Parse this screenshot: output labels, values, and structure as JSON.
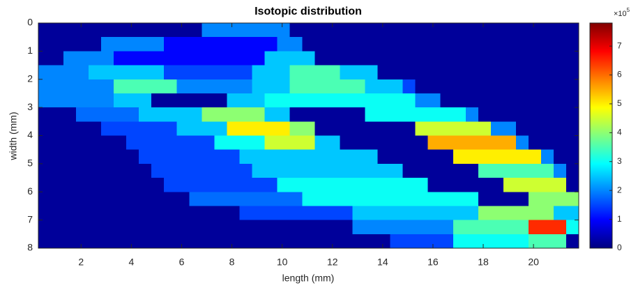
{
  "chart_data": {
    "type": "heatmap",
    "title": "Isotopic distribution",
    "xlabel": "length (mm)",
    "ylabel": "width (mm)",
    "colormap": "jet",
    "y_reversed": true,
    "xlim": [
      0.3,
      21.8
    ],
    "xticks": [
      2,
      4,
      6,
      8,
      10,
      12,
      14,
      16,
      18,
      20
    ],
    "ylim": [
      0,
      8
    ],
    "yticks": [
      0,
      1,
      2,
      3,
      4,
      5,
      6,
      7,
      8
    ],
    "clim": [
      0,
      7.8
    ],
    "cticks": [
      0,
      1,
      2,
      3,
      4,
      5,
      6,
      7
    ],
    "colorbar_multiplier": "×10",
    "colorbar_exponent": "5",
    "x": [
      0.55,
      1.05,
      1.55,
      2.05,
      2.55,
      3.05,
      3.55,
      4.05,
      4.55,
      5.05,
      5.55,
      6.05,
      6.55,
      7.05,
      7.55,
      8.05,
      8.55,
      9.05,
      9.55,
      10.05,
      10.55,
      11.05,
      11.55,
      12.05,
      12.55,
      13.05,
      13.55,
      14.05,
      14.55,
      15.05,
      15.55,
      16.05,
      16.55,
      17.05,
      17.55,
      18.05,
      18.55,
      19.05,
      19.55,
      20.05,
      20.55,
      21.05,
      21.55
    ],
    "y": [
      0.25,
      0.75,
      1.25,
      1.75,
      2.25,
      2.75,
      3.25,
      3.75,
      4.25,
      4.75,
      5.25,
      5.75,
      6.25,
      6.75,
      7.25,
      7.75
    ],
    "z": [
      [
        0.2,
        0.2,
        0.2,
        0.2,
        0.2,
        0.2,
        0.2,
        0.2,
        0.2,
        0.2,
        0.2,
        0.2,
        0.2,
        2,
        2,
        2,
        2,
        2,
        2,
        2,
        0.2,
        0.2,
        0.2,
        0.2,
        0.2,
        0.2,
        0.2,
        0.2,
        0.2,
        0.2,
        0.2,
        0.2,
        0.2,
        0.2,
        0.2,
        0.2,
        0.2,
        0.2,
        0.2,
        0.2,
        0.2,
        0.2,
        0.2
      ],
      [
        0.2,
        0.2,
        0.2,
        0.2,
        0.2,
        2,
        2,
        2,
        2,
        2,
        1,
        1,
        1,
        1,
        1,
        1,
        1,
        1,
        1,
        2,
        2,
        0.2,
        0.2,
        0.2,
        0.2,
        0.2,
        0.2,
        0.2,
        0.2,
        0.2,
        0.2,
        0.2,
        0.2,
        0.2,
        0.2,
        0.2,
        0.2,
        0.2,
        0.2,
        0.2,
        0.2,
        0.2,
        0.2
      ],
      [
        0.2,
        0.2,
        2,
        2,
        2,
        2,
        1,
        1,
        1,
        1,
        1,
        1,
        1,
        1,
        1,
        1,
        1,
        1,
        2.5,
        2.5,
        2.5,
        2.5,
        0.2,
        0.2,
        0.2,
        0.2,
        0.2,
        0.2,
        0.2,
        0.2,
        0.2,
        0.2,
        0.2,
        0.2,
        0.2,
        0.2,
        0.2,
        0.2,
        0.2,
        0.2,
        0.2,
        0.2,
        0.2
      ],
      [
        2,
        2,
        2,
        2,
        2.5,
        2.5,
        2.5,
        2.5,
        2.5,
        2.5,
        1.5,
        1.5,
        1.5,
        1.5,
        1.5,
        1.5,
        1.5,
        2.5,
        2.5,
        2.5,
        3.5,
        3.5,
        3.5,
        3.5,
        2.5,
        2.5,
        2.5,
        0.2,
        0.2,
        0.2,
        0.2,
        0.2,
        0.2,
        0.2,
        0.2,
        0.2,
        0.2,
        0.2,
        0.2,
        0.2,
        0.2,
        0.2,
        0.2
      ],
      [
        2,
        2,
        2,
        2,
        2,
        2,
        3.5,
        3.5,
        3.5,
        3.5,
        3.5,
        2,
        2,
        2,
        2,
        2,
        2,
        2.5,
        2.5,
        2.5,
        3.5,
        3.5,
        3.5,
        3.5,
        3.5,
        3.5,
        2.5,
        2.5,
        2.5,
        1.5,
        0.2,
        0.2,
        0.2,
        0.2,
        0.2,
        0.2,
        0.2,
        0.2,
        0.2,
        0.2,
        0.2,
        0.2,
        0.2
      ],
      [
        2,
        2,
        2,
        2,
        2,
        2,
        2.5,
        2.5,
        2.5,
        0.2,
        0.2,
        0.2,
        0.2,
        0.2,
        0.2,
        2.5,
        2.5,
        2.5,
        3,
        3,
        3,
        3,
        3,
        3,
        3,
        3,
        3,
        3,
        3,
        3,
        2,
        2,
        0.2,
        0.2,
        0.2,
        0.2,
        0.2,
        0.2,
        0.2,
        0.2,
        0.2,
        0.2,
        0.2
      ],
      [
        0.2,
        0.2,
        0.2,
        1.8,
        1.8,
        1.8,
        1.8,
        1.8,
        2.5,
        2.5,
        2.5,
        2.5,
        2.5,
        4,
        4,
        4,
        4,
        4,
        2.5,
        2.5,
        0.2,
        0.2,
        0.2,
        0.2,
        0.2,
        0.2,
        3,
        3,
        3,
        3,
        3,
        3,
        3,
        3,
        2,
        0.2,
        0.2,
        0.2,
        0.2,
        0.2,
        0.2,
        0.2,
        0.2
      ],
      [
        0.2,
        0.2,
        0.2,
        0.2,
        0.2,
        1.5,
        1.5,
        1.5,
        1.5,
        1.5,
        1.5,
        2.5,
        2.5,
        2.5,
        2.5,
        5,
        5,
        5,
        5,
        5,
        4,
        4,
        0.2,
        0.2,
        0.2,
        0.2,
        0.2,
        0.2,
        0.2,
        0.2,
        4.5,
        4.5,
        4.5,
        4.5,
        4.5,
        4.5,
        2,
        2,
        0.2,
        0.2,
        0.2,
        0.2,
        0.2
      ],
      [
        0.2,
        0.2,
        0.2,
        0.2,
        0.2,
        0.2,
        0.2,
        1.5,
        1.5,
        1.5,
        1.5,
        1.5,
        1.5,
        1.5,
        3,
        3,
        3,
        3,
        4.5,
        4.5,
        4.5,
        4.5,
        2.5,
        2.5,
        0.2,
        0.2,
        0.2,
        0.2,
        0.2,
        0.2,
        0.2,
        5.5,
        5.5,
        5.5,
        5.5,
        5.5,
        5.5,
        5.5,
        2,
        0.2,
        0.2,
        0.2,
        0.2
      ],
      [
        0.2,
        0.2,
        0.2,
        0.2,
        0.2,
        0.2,
        0.2,
        0.2,
        1.5,
        1.5,
        1.5,
        1.5,
        1.5,
        1.5,
        1.5,
        1.5,
        2.5,
        2.5,
        2.5,
        2.5,
        2.5,
        2.5,
        2.5,
        2.5,
        2.5,
        2.5,
        2.5,
        0.2,
        0.2,
        0.2,
        0.2,
        0.2,
        0.2,
        5,
        5,
        5,
        5,
        5,
        5,
        5,
        2,
        0.2,
        0.2
      ],
      [
        0.2,
        0.2,
        0.2,
        0.2,
        0.2,
        0.2,
        0.2,
        0.2,
        0.2,
        1.5,
        1.5,
        1.5,
        1.5,
        1.5,
        1.5,
        1.5,
        1.5,
        2.5,
        2.5,
        2.5,
        2.5,
        2.5,
        2.5,
        2.5,
        2.5,
        2.5,
        2.5,
        2.5,
        2.5,
        0.2,
        0.2,
        0.2,
        0.2,
        0.2,
        0.2,
        3.5,
        3.5,
        3.5,
        3.5,
        3.5,
        3.5,
        2,
        0.2
      ],
      [
        0.2,
        0.2,
        0.2,
        0.2,
        0.2,
        0.2,
        0.2,
        0.2,
        0.2,
        0.2,
        1.5,
        1.5,
        1.5,
        1.5,
        1.5,
        1.5,
        1.5,
        1.5,
        1.5,
        3,
        3,
        3,
        3,
        3,
        3,
        3,
        3,
        3,
        3,
        3,
        3,
        0.2,
        0.2,
        0.2,
        0.2,
        0.2,
        0.2,
        4.5,
        4.5,
        4.5,
        4.5,
        4.5,
        0.2
      ],
      [
        0.2,
        0.2,
        0.2,
        0.2,
        0.2,
        0.2,
        0.2,
        0.2,
        0.2,
        0.2,
        0.2,
        0.2,
        1.8,
        1.8,
        1.8,
        1.8,
        1.8,
        1.8,
        1.8,
        1.8,
        1.8,
        3,
        3,
        3,
        3,
        3,
        3,
        3,
        3,
        3,
        3,
        3,
        3,
        3,
        3,
        0.2,
        0.2,
        0.2,
        0.2,
        4,
        4,
        4,
        4
      ],
      [
        0.2,
        0.2,
        0.2,
        0.2,
        0.2,
        0.2,
        0.2,
        0.2,
        0.2,
        0.2,
        0.2,
        0.2,
        0.2,
        0.2,
        0.2,
        0.2,
        1.5,
        1.5,
        1.5,
        1.5,
        1.5,
        1.5,
        1.5,
        1.5,
        1.5,
        2.5,
        2.5,
        2.5,
        2.5,
        2.5,
        2.5,
        2.5,
        2.5,
        2.5,
        2.5,
        4,
        4,
        4,
        4,
        4,
        4,
        2.5,
        2.5
      ],
      [
        0.2,
        0.2,
        0.2,
        0.2,
        0.2,
        0.2,
        0.2,
        0.2,
        0.2,
        0.2,
        0.2,
        0.2,
        0.2,
        0.2,
        0.2,
        0.2,
        0.2,
        0.2,
        0.2,
        0.2,
        0.2,
        0.2,
        0.2,
        0.2,
        0.2,
        2,
        2,
        2,
        2,
        2,
        2,
        2,
        2,
        3.5,
        3.5,
        3.5,
        3.5,
        3.5,
        3.5,
        6.5,
        6.5,
        6.5,
        3
      ],
      [
        0.2,
        0.2,
        0.2,
        0.2,
        0.2,
        0.2,
        0.2,
        0.2,
        0.2,
        0.2,
        0.2,
        0.2,
        0.2,
        0.2,
        0.2,
        0.2,
        0.2,
        0.2,
        0.2,
        0.2,
        0.2,
        0.2,
        0.2,
        0.2,
        0.2,
        0.2,
        0.2,
        0.2,
        1.5,
        1.5,
        1.5,
        1.5,
        1.5,
        3,
        3,
        3,
        3,
        3,
        3,
        3.5,
        3.5,
        3.5,
        0.2
      ]
    ]
  }
}
